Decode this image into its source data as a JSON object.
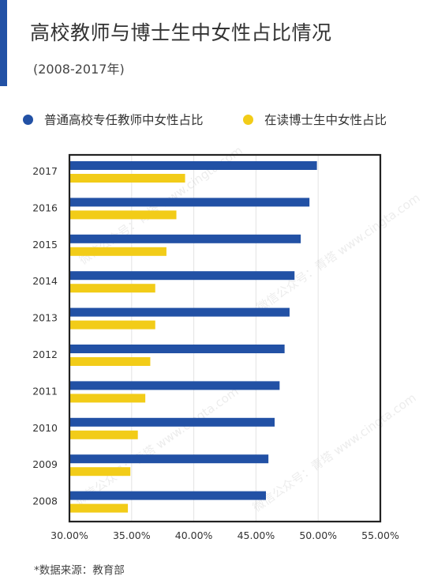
{
  "header": {
    "title": "高校教师与博士生中女性占比情况",
    "subtitle": "(2008-2017年)"
  },
  "legend": [
    {
      "label": "普通高校专任教师中女性占比",
      "color": "#2251a5"
    },
    {
      "label": "在读博士生中女性占比",
      "color": "#f2cc18"
    }
  ],
  "footnote": "*数据来源：教育部",
  "watermark": "微信公众号：青塔 www.cingta.com",
  "chart_data": {
    "type": "bar",
    "orientation": "horizontal",
    "categories": [
      "2017",
      "2016",
      "2015",
      "2014",
      "2013",
      "2012",
      "2011",
      "2010",
      "2009",
      "2008"
    ],
    "series": [
      {
        "name": "普通高校专任教师中女性占比",
        "color": "#2251a5",
        "values": [
          49.9,
          49.3,
          48.6,
          48.1,
          47.7,
          47.3,
          46.9,
          46.5,
          46.0,
          45.8
        ]
      },
      {
        "name": "在读博士生中女性占比",
        "color": "#f2cc18",
        "values": [
          39.3,
          38.6,
          37.8,
          36.9,
          36.9,
          36.5,
          36.1,
          35.5,
          34.9,
          34.7
        ]
      }
    ],
    "xlim": [
      30,
      55
    ],
    "xticks": [
      "30.00%",
      "35.00%",
      "40.00%",
      "45.00%",
      "50.00%",
      "55.00%"
    ],
    "xtick_values": [
      30,
      35,
      40,
      45,
      50,
      55
    ],
    "grid": "vertical",
    "legend_position": "top"
  }
}
